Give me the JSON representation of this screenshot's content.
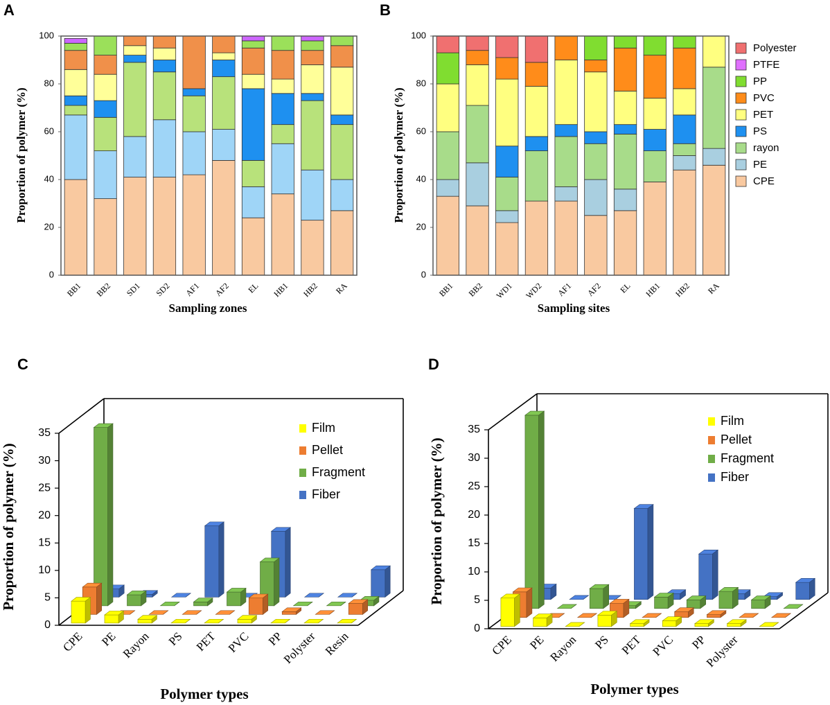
{
  "chart_data": [
    {
      "type": "stacked_bar",
      "title": "A",
      "ylabel": "Proportion of polymer (%)",
      "xlabel": "Sampling zones",
      "categories": [
        "BB1",
        "BB2",
        "SD1",
        "SD2",
        "AF1",
        "AF2",
        "EL",
        "HB1",
        "HB2",
        "RA"
      ],
      "ylim": [
        0,
        100
      ],
      "yticks": [
        0,
        20,
        40,
        60,
        80,
        100
      ],
      "legend": false,
      "series": [
        {
          "name": "CPE",
          "color": "#f9c9a0",
          "values": [
            40,
            32,
            41,
            41,
            42,
            48,
            24,
            34,
            23,
            27
          ]
        },
        {
          "name": "PE",
          "color": "#9fd5f7",
          "values": [
            27,
            20,
            17,
            24,
            18,
            13,
            13,
            21,
            21,
            13
          ]
        },
        {
          "name": "rayon",
          "color": "#b8e27b",
          "values": [
            4,
            14,
            31,
            20,
            15,
            22,
            11,
            8,
            29,
            23
          ]
        },
        {
          "name": "PS",
          "color": "#1e90f0",
          "values": [
            4,
            7,
            3,
            5,
            3,
            7,
            30,
            13,
            3,
            4
          ]
        },
        {
          "name": "PET",
          "color": "#ffff99",
          "values": [
            11,
            11,
            4,
            5,
            0,
            3,
            6,
            6,
            12,
            20
          ]
        },
        {
          "name": "PVC",
          "color": "#f0904a",
          "values": [
            8,
            8,
            4,
            5,
            22,
            7,
            11,
            12,
            6,
            9
          ]
        },
        {
          "name": "PP",
          "color": "#9be05a",
          "values": [
            3,
            8,
            0,
            0,
            0,
            0,
            3,
            6,
            4,
            4
          ]
        },
        {
          "name": "PTFE",
          "color": "#cc66ff",
          "values": [
            2,
            0,
            0,
            0,
            0,
            0,
            2,
            0,
            2,
            0
          ]
        },
        {
          "name": "Polyester",
          "color": "#f07070",
          "values": [
            0,
            0,
            0,
            0,
            0,
            0,
            0,
            0,
            0,
            0
          ]
        }
      ]
    },
    {
      "type": "stacked_bar",
      "title": "B",
      "ylabel": "Proportion of polymer (%)",
      "xlabel": "Sampling sites",
      "categories": [
        "BB1",
        "BB2",
        "WD1",
        "WD2",
        "AF1",
        "AF2",
        "EL",
        "HB1",
        "HB2",
        "RA"
      ],
      "ylim": [
        0,
        100
      ],
      "yticks": [
        0,
        20,
        40,
        60,
        80,
        100
      ],
      "legend": "right",
      "series": [
        {
          "name": "CPE",
          "color": "#f9c9a0",
          "values": [
            33,
            29,
            22,
            31,
            31,
            25,
            27,
            39,
            44,
            46
          ]
        },
        {
          "name": "PE",
          "color": "#a9cfe0",
          "values": [
            7,
            18,
            5,
            0,
            6,
            15,
            9,
            0,
            6,
            7
          ]
        },
        {
          "name": "rayon",
          "color": "#a8dc8a",
          "values": [
            20,
            24,
            14,
            21,
            21,
            15,
            23,
            13,
            5,
            34
          ]
        },
        {
          "name": "PS",
          "color": "#1e90f0",
          "values": [
            0,
            0,
            13,
            6,
            5,
            5,
            4,
            9,
            12,
            0
          ]
        },
        {
          "name": "PET",
          "color": "#ffff80",
          "values": [
            20,
            17,
            28,
            21,
            27,
            25,
            14,
            13,
            11,
            13
          ]
        },
        {
          "name": "PVC",
          "color": "#ff8c1a",
          "values": [
            0,
            6,
            9,
            10,
            10,
            5,
            18,
            18,
            17,
            0
          ]
        },
        {
          "name": "PP",
          "color": "#80dd30",
          "values": [
            13,
            0,
            0,
            0,
            0,
            10,
            5,
            8,
            5,
            0
          ]
        },
        {
          "name": "PTFE",
          "color": "#e070ff",
          "values": [
            0,
            0,
            0,
            0,
            0,
            0,
            0,
            0,
            0,
            0
          ]
        },
        {
          "name": "Polyester",
          "color": "#f07070",
          "values": [
            7,
            6,
            9,
            11,
            0,
            0,
            0,
            0,
            0,
            0
          ]
        }
      ]
    },
    {
      "type": "bar3d",
      "title": "C",
      "ylabel": "Proportion of polymer (%)",
      "xlabel": "Polymer types",
      "categories": [
        "CPE",
        "PE",
        "Rayon",
        "PS",
        "PET",
        "PVC",
        "PP",
        "Polyster",
        "Resin"
      ],
      "ylim": [
        0,
        35
      ],
      "yticks": [
        0,
        5,
        10,
        15,
        20,
        25,
        30,
        35
      ],
      "legend": "upper right",
      "series": [
        {
          "name": "Film",
          "color": "#ffff00",
          "values": [
            4,
            1.5,
            0.7,
            0,
            0,
            0.7,
            0,
            0,
            0
          ]
        },
        {
          "name": "Pellet",
          "color": "#ed7d31",
          "values": [
            5,
            0,
            0,
            0,
            0,
            3,
            0.5,
            0,
            2
          ]
        },
        {
          "name": "Fragment",
          "color": "#70ad47",
          "values": [
            32.5,
            2,
            0,
            0.7,
            2.5,
            8,
            0,
            0,
            1
          ]
        },
        {
          "name": "Fiber",
          "color": "#4472c4",
          "values": [
            1.5,
            0.5,
            0,
            13,
            0,
            12,
            0,
            0,
            5
          ]
        }
      ]
    },
    {
      "type": "bar3d",
      "title": "D",
      "ylabel": "Proportion of polymer (%)",
      "xlabel": "Polymer types",
      "categories": [
        "CPE",
        "PE",
        "Rayon",
        "PS",
        "PET",
        "PVC",
        "PP",
        "Polyster",
        null
      ],
      "ylim": [
        0,
        35
      ],
      "yticks": [
        0,
        5,
        10,
        15,
        20,
        25,
        30,
        35
      ],
      "legend": "upper right",
      "series": [
        {
          "name": "Film",
          "color": "#ffff00",
          "values": [
            5,
            1.5,
            0,
            2,
            0.5,
            1,
            0.5,
            0.5,
            0
          ]
        },
        {
          "name": "Pellet",
          "color": "#ed7d31",
          "values": [
            4.5,
            0,
            0,
            2.5,
            0,
            1,
            0.5,
            0,
            0
          ]
        },
        {
          "name": "Fragment",
          "color": "#70ad47",
          "values": [
            34,
            0,
            3.5,
            0.5,
            2,
            1.5,
            3,
            1.5,
            0
          ]
        },
        {
          "name": "Fiber",
          "color": "#4472c4",
          "values": [
            2,
            0,
            0,
            16,
            1,
            8,
            1,
            0.5,
            3
          ]
        }
      ]
    }
  ]
}
